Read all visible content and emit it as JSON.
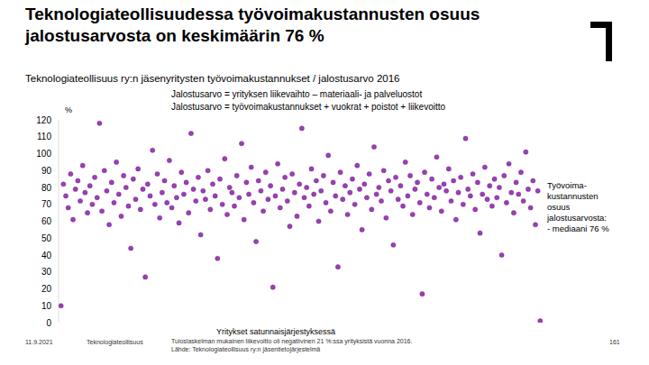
{
  "chart_data": {
    "type": "scatter",
    "title": "Teknologiateollisuudessa työvoimakustannusten osuus jalostusarvosta on keskimäärin 76 %",
    "subtitle": "Teknologiateollisuus ry:n jäsenyritysten työvoimakustannukset / jalostusarvo 2016",
    "annotations": [
      "Jalostusarvo = yrityksen liikevaihto – materiaali- ja palveluostot",
      "Jalostusarvo = työvoimakustannukset + vuokrat + poistot + liikevoitto"
    ],
    "y_label": "%",
    "x_label": "Yritykset satunnaisjärjestyksessä",
    "side_note": [
      "Työvoima-",
      "kustannusten",
      "osuus",
      "jalostusarvosta:",
      "- mediaani 76 %"
    ],
    "footer": [
      "11.9.2021",
      "Teknologiateollisuus",
      "Tuloslaskelman mukainen liikevoitto oli negatiivinen 21 %:ssa yrityksistä vuonna 2016.",
      "Lähde: Teknologiateollisuus ry:n jäsentietojärjestelmä",
      "161"
    ],
    "color": "#9b3fb5",
    "marker": "circle",
    "grid": false,
    "tick_labels": "y",
    "xlim": [
      0,
      201
    ],
    "ylim": [
      0,
      120
    ],
    "yticks": [
      0,
      10,
      20,
      30,
      40,
      50,
      60,
      70,
      80,
      90,
      100,
      110,
      120
    ],
    "x": [
      1,
      2,
      3,
      4,
      5,
      6,
      7,
      8,
      9,
      10,
      11,
      12,
      13,
      14,
      15,
      16,
      17,
      18,
      19,
      20,
      21,
      22,
      23,
      24,
      25,
      26,
      27,
      28,
      29,
      30,
      31,
      32,
      33,
      34,
      35,
      36,
      37,
      38,
      39,
      40,
      41,
      42,
      43,
      44,
      45,
      46,
      47,
      48,
      49,
      50,
      51,
      52,
      53,
      54,
      55,
      56,
      57,
      58,
      59,
      60,
      61,
      62,
      63,
      64,
      65,
      66,
      67,
      68,
      69,
      70,
      71,
      72,
      73,
      74,
      75,
      76,
      77,
      78,
      79,
      80,
      81,
      82,
      83,
      84,
      85,
      86,
      87,
      88,
      89,
      90,
      91,
      92,
      93,
      94,
      95,
      96,
      97,
      98,
      99,
      100,
      101,
      102,
      103,
      104,
      105,
      106,
      107,
      108,
      109,
      110,
      111,
      112,
      113,
      114,
      115,
      116,
      117,
      118,
      119,
      120,
      121,
      122,
      123,
      124,
      125,
      126,
      127,
      128,
      129,
      130,
      131,
      132,
      133,
      134,
      135,
      136,
      137,
      138,
      139,
      140,
      141,
      142,
      143,
      144,
      145,
      146,
      147,
      148,
      149,
      150,
      151,
      152,
      153,
      154,
      155,
      156,
      157,
      158,
      159,
      160,
      161,
      162,
      163,
      164,
      165,
      166,
      167,
      168,
      169,
      170,
      171,
      172,
      173,
      174,
      175,
      176,
      177,
      178,
      179,
      180,
      181,
      182,
      183,
      184,
      185,
      186,
      187,
      188,
      189,
      190,
      191,
      192,
      193,
      194,
      195,
      196,
      197,
      198,
      199,
      200
    ],
    "values": [
      10,
      82,
      75,
      68,
      88,
      61,
      79,
      84,
      72,
      93,
      77,
      65,
      81,
      70,
      86,
      74,
      118,
      66,
      90,
      78,
      58,
      83,
      71,
      95,
      76,
      63,
      87,
      80,
      69,
      44,
      85,
      73,
      91,
      67,
      79,
      27,
      82,
      75,
      102,
      70,
      88,
      62,
      77,
      84,
      71,
      96,
      68,
      81,
      74,
      59,
      89,
      76,
      83,
      65,
      112,
      79,
      72,
      86,
      52,
      78,
      73,
      90,
      67,
      82,
      75,
      38,
      85,
      70,
      97,
      64,
      80,
      77,
      69,
      87,
      74,
      106,
      61,
      83,
      76,
      92,
      71,
      48,
      84,
      78,
      66,
      89,
      73,
      81,
      21,
      75,
      94,
      68,
      79,
      86,
      72,
      57,
      88,
      77,
      63,
      82,
      115,
      74,
      80,
      69,
      91,
      76,
      84,
      60,
      78,
      87,
      71,
      99,
      66,
      83,
      75,
      33,
      89,
      73,
      81,
      64,
      77,
      85,
      70,
      93,
      79,
      55,
      82,
      74,
      88,
      67,
      104,
      76,
      80,
      72,
      90,
      62,
      84,
      78,
      46,
      86,
      73,
      81,
      69,
      95,
      75,
      87,
      64,
      79,
      83,
      71,
      17,
      89,
      76,
      68,
      85,
      74,
      98,
      80,
      66,
      82,
      78,
      91,
      72,
      84,
      61,
      77,
      86,
      70,
      109,
      79,
      75,
      88,
      67,
      83,
      53,
      76,
      92,
      73,
      81,
      69,
      85,
      74,
      80,
      40,
      87,
      71,
      94,
      77,
      65,
      83,
      76,
      89,
      72,
      101,
      79,
      68,
      84,
      58,
      78,
      1
    ]
  }
}
